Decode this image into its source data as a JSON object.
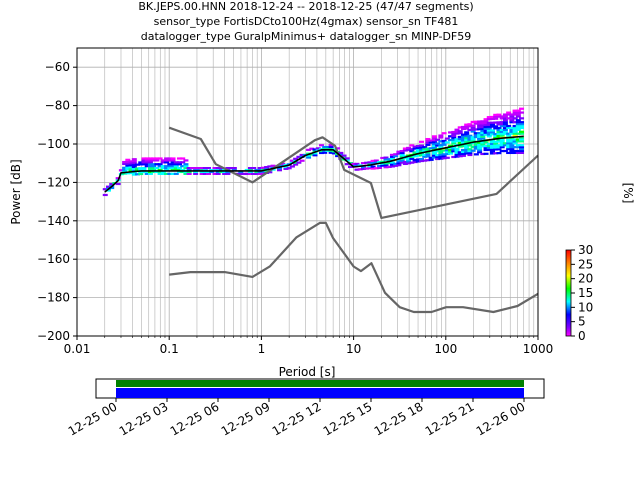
{
  "chart_data": {
    "type": "line",
    "title_lines": [
      "BK.JEPS.00.HNN   2018-12-24 -- 2018-12-25  (47/47 segments)",
      "sensor_type FortisDCto100Hz(4gmax) sensor_sn TF481",
      "datalogger_type GuralpMinimus+ datalogger_sn MINP-DF59"
    ],
    "xlabel": "Period [s]",
    "ylabel": "Power [dB]",
    "x_scale": "log",
    "xlim": [
      0.01,
      1000
    ],
    "ylim": [
      -200,
      -50
    ],
    "x_ticks": [
      {
        "value": 0.01,
        "label": "0.01"
      },
      {
        "value": 0.1,
        "label": "0.1"
      },
      {
        "value": 1,
        "label": "1"
      },
      {
        "value": 10,
        "label": "10"
      },
      {
        "value": 100,
        "label": "100"
      },
      {
        "value": 1000,
        "label": "1000"
      }
    ],
    "y_ticks": [
      {
        "value": -60,
        "label": "−60"
      },
      {
        "value": -80,
        "label": "−80"
      },
      {
        "value": -100,
        "label": "−100"
      },
      {
        "value": -120,
        "label": "−120"
      },
      {
        "value": -140,
        "label": "−140"
      },
      {
        "value": -160,
        "label": "−160"
      },
      {
        "value": -180,
        "label": "−180"
      },
      {
        "value": -200,
        "label": "−200"
      }
    ],
    "grid": true,
    "series": [
      {
        "kind": "noise-model-high",
        "color": "#666666",
        "points": [
          [
            0.1,
            -91.5
          ],
          [
            0.22,
            -97.4
          ],
          [
            0.32,
            -110.5
          ],
          [
            0.8,
            -120
          ],
          [
            3.8,
            -98
          ],
          [
            4.6,
            -96.5
          ],
          [
            6.3,
            -101
          ],
          [
            7.9,
            -113.5
          ],
          [
            15.4,
            -120.3
          ],
          [
            20,
            -138.5
          ],
          [
            354.8,
            -126
          ],
          [
            1000,
            -106
          ]
        ]
      },
      {
        "kind": "noise-model-low",
        "color": "#666666",
        "points": [
          [
            0.1,
            -168
          ],
          [
            0.17,
            -166.7
          ],
          [
            0.4,
            -166.7
          ],
          [
            0.8,
            -169.2
          ],
          [
            1.24,
            -163.7
          ],
          [
            2.4,
            -148.6
          ],
          [
            4.3,
            -141.1
          ],
          [
            5,
            -141.1
          ],
          [
            6,
            -149
          ],
          [
            10,
            -163.8
          ],
          [
            12,
            -166.2
          ],
          [
            15.6,
            -162.1
          ],
          [
            21.9,
            -177.5
          ],
          [
            31.6,
            -185
          ],
          [
            45,
            -187.5
          ],
          [
            70,
            -187.5
          ],
          [
            101,
            -185
          ],
          [
            154,
            -185
          ],
          [
            328,
            -187.5
          ],
          [
            600,
            -184.4
          ],
          [
            1000,
            -178
          ]
        ]
      },
      {
        "kind": "mode",
        "color": "#000000",
        "points": [
          [
            0.02,
            -125
          ],
          [
            0.024,
            -122
          ],
          [
            0.028,
            -119
          ],
          [
            0.03,
            -115
          ],
          [
            0.05,
            -114
          ],
          [
            0.1,
            -114
          ],
          [
            0.3,
            -114
          ],
          [
            1,
            -114
          ],
          [
            2,
            -111
          ],
          [
            3,
            -106
          ],
          [
            4.5,
            -103
          ],
          [
            6,
            -103
          ],
          [
            8,
            -108
          ],
          [
            10,
            -112
          ],
          [
            15,
            -111
          ],
          [
            25,
            -109
          ],
          [
            50,
            -105
          ],
          [
            100,
            -102
          ],
          [
            200,
            -99
          ],
          [
            400,
            -97
          ],
          [
            700,
            -96
          ]
        ]
      }
    ],
    "colorbar": {
      "label": "[%]",
      "range": [
        0,
        30
      ],
      "ticks": [
        {
          "value": 0,
          "label": "0"
        },
        {
          "value": 5,
          "label": "5"
        },
        {
          "value": 10,
          "label": "10"
        },
        {
          "value": 15,
          "label": "15"
        },
        {
          "value": 20,
          "label": "20"
        },
        {
          "value": 25,
          "label": "25"
        },
        {
          "value": 30,
          "label": "30"
        }
      ]
    },
    "timeline": {
      "bars": [
        {
          "color": "#008000"
        },
        {
          "color": "#0000ff"
        }
      ],
      "ticks": [
        "12-25 00",
        "12-25 03",
        "12-25 06",
        "12-25 09",
        "12-25 12",
        "12-25 15",
        "12-25 18",
        "12-25 21",
        "12-26 00"
      ]
    }
  }
}
